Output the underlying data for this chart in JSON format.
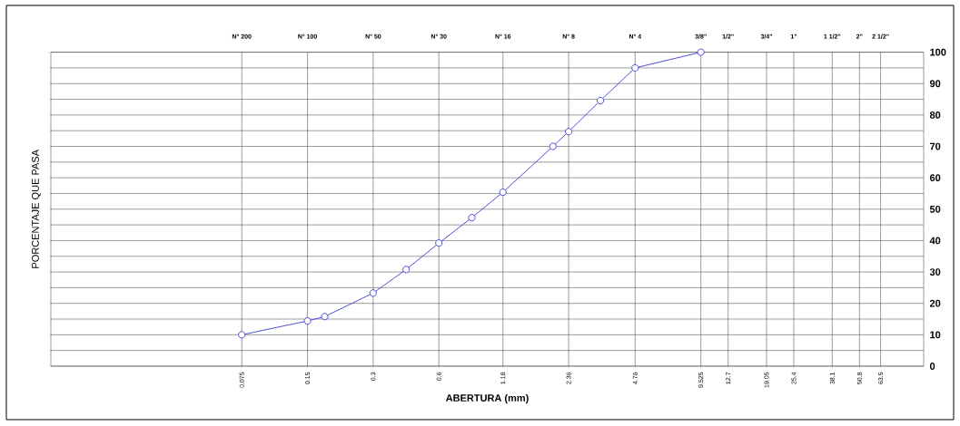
{
  "chart_data": {
    "type": "line",
    "xlabel": "ABERTURA (mm)",
    "ylabel": "PORCENTAJE QUE PASA",
    "log": "x",
    "grid": true,
    "marker": "circle",
    "line_style": "solid",
    "xlim": [
      0.01,
      100
    ],
    "ylim": [
      0,
      100
    ],
    "xticks": [
      0.075,
      0.15,
      0.3,
      0.6,
      1.18,
      2.36,
      4.76,
      9.525,
      12.7,
      19.05,
      25.4,
      38.1,
      50.8,
      63.5
    ],
    "annotations": [
      "N° 200",
      "N° 100",
      "N° 50",
      "N° 30",
      "N° 16",
      "N° 8",
      "N° 4",
      "3/8\"",
      "1/2\"",
      "3/4\"",
      "1\"",
      "1 1/2\"",
      "2\"",
      "2 1/2\""
    ],
    "yticks": [
      0,
      {
        "value": 5,
        "label": null
      },
      10,
      {
        "value": 15,
        "label": null
      },
      20,
      {
        "value": 25,
        "label": null
      },
      30,
      {
        "value": 35,
        "label": null
      },
      40,
      {
        "value": 45,
        "label": null
      },
      50,
      {
        "value": 55,
        "label": null
      },
      60,
      {
        "value": 65,
        "label": null
      },
      70,
      {
        "value": 75,
        "label": null
      },
      80,
      {
        "value": 85,
        "label": null
      },
      90,
      {
        "value": 95,
        "label": null
      },
      100
    ],
    "series": [
      {
        "color": "#3b3bd6",
        "x": [
          0.075,
          0.15,
          0.18,
          0.3,
          0.425,
          0.6,
          0.85,
          1.18,
          2.0,
          2.36,
          3.3,
          4.76,
          9.525
        ],
        "values": [
          10,
          14.4,
          15.8,
          23.3,
          30.8,
          39.2,
          47.3,
          55.4,
          70,
          74.7,
          84.6,
          95,
          100
        ]
      }
    ]
  }
}
